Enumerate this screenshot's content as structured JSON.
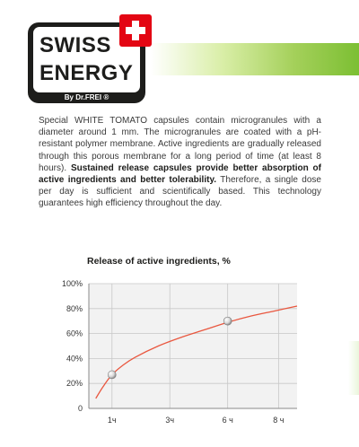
{
  "logo": {
    "line1": "SWISS",
    "line2": "ENERGY",
    "sub": "By Dr.FREI ®"
  },
  "description": {
    "p1": "Special WHITE TOMATO capsules contain microgranules with a diameter around 1 mm. The microgranules are coated with a pH-resistant polymer membrane. Active ingredients are gradually released through this porous membrane for a long period of time (at least 8 hours). ",
    "bold": "Sustained release capsules provide better absorption of active ingredients and better tolerability.",
    "p2": " Therefore, a single dose per day is sufficient and scientifically based. This technology guarantees high efficiency throughout the day."
  },
  "chart_data": {
    "type": "line",
    "title": "Release of active ingredients, %",
    "x_ticks": [
      "1ч",
      "3ч",
      "6 ч",
      "8 ч"
    ],
    "y_ticks": [
      "0",
      "20%",
      "40%",
      "60%",
      "80%",
      "100%"
    ],
    "ylim": [
      0,
      100
    ],
    "xlim": [
      0,
      9
    ],
    "x_tick_values": [
      1,
      3.5,
      6,
      8.2
    ],
    "series": [
      {
        "x": [
          0.3,
          0.6,
          1,
          1.5,
          2,
          3,
          4,
          5,
          6,
          7,
          8,
          9
        ],
        "y": [
          8,
          17,
          27,
          35,
          41,
          50,
          57,
          63,
          69,
          74,
          78,
          82
        ]
      }
    ],
    "markers": [
      {
        "x": 1,
        "y": 27
      },
      {
        "x": 6,
        "y": 70
      }
    ],
    "grid": true,
    "line_color": "#e9573f"
  }
}
